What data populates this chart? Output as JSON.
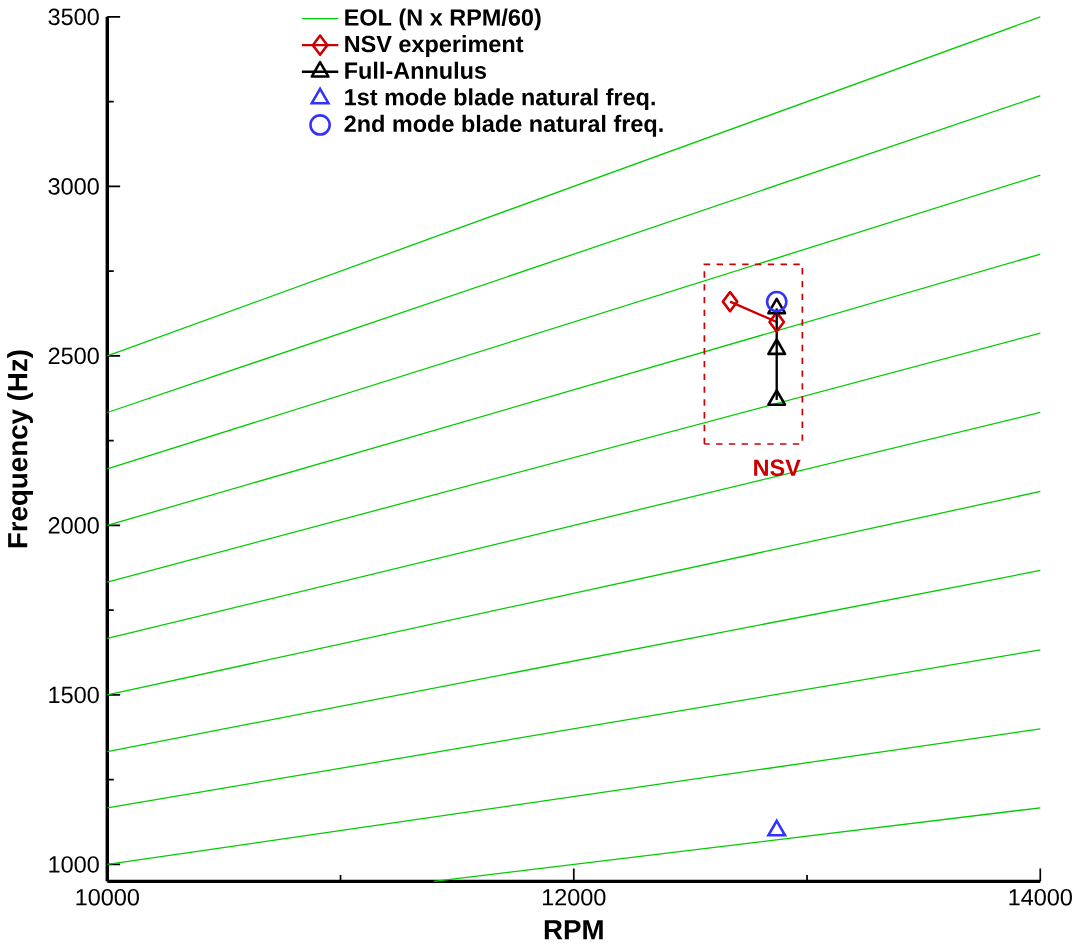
{
  "chart_data": {
    "type": "line",
    "xlabel": "RPM",
    "ylabel": "Frequency (Hz)",
    "xlim": [
      10000,
      14000
    ],
    "ylim": [
      950,
      3500
    ],
    "xticks": [
      10000,
      12000,
      14000
    ],
    "yticks": [
      1000,
      1500,
      2000,
      2500,
      3000,
      3500
    ],
    "legend": "top left",
    "grid": false,
    "annotations": [
      {
        "text": "NSV",
        "x": 12870,
        "y": 2170
      }
    ],
    "series": [
      {
        "name": "EOL (N x RPM/60)",
        "color": "#00cc00",
        "marker": "none",
        "x": [
          11400,
          14000
        ],
        "values": [
          950,
          1167
        ]
      },
      {
        "color": "#00cc00",
        "marker": "none",
        "x": [
          10000,
          14000
        ],
        "values": [
          1000,
          1400
        ]
      },
      {
        "color": "#00cc00",
        "marker": "none",
        "x": [
          10000,
          14000
        ],
        "values": [
          1167,
          1633
        ]
      },
      {
        "color": "#00cc00",
        "marker": "none",
        "x": [
          10000,
          14000
        ],
        "values": [
          1333,
          1867
        ]
      },
      {
        "color": "#00cc00",
        "marker": "none",
        "x": [
          10000,
          14000
        ],
        "values": [
          1500,
          2100
        ]
      },
      {
        "color": "#00cc00",
        "marker": "none",
        "x": [
          10000,
          14000
        ],
        "values": [
          1667,
          2333
        ]
      },
      {
        "color": "#00cc00",
        "marker": "none",
        "x": [
          10000,
          14000
        ],
        "values": [
          1833,
          2567
        ]
      },
      {
        "color": "#00cc00",
        "marker": "none",
        "x": [
          10000,
          14000
        ],
        "values": [
          2000,
          2800
        ]
      },
      {
        "color": "#00cc00",
        "marker": "none",
        "x": [
          10000,
          14000
        ],
        "values": [
          2167,
          3033
        ]
      },
      {
        "color": "#00cc00",
        "marker": "none",
        "x": [
          10000,
          14000
        ],
        "values": [
          2333,
          3267
        ]
      },
      {
        "color": "#00cc00",
        "marker": "none",
        "x": [
          10000,
          14000
        ],
        "values": [
          2500,
          3500
        ]
      },
      {
        "name": "NSV experiment",
        "color": "#cc0000",
        "marker": "diamond",
        "x": [
          12670,
          12870
        ],
        "values": [
          2660,
          2600
        ]
      },
      {
        "name": "Full-Annulus",
        "color": "#000000",
        "marker": "triangle",
        "x": [
          12870,
          12870,
          12870
        ],
        "values": [
          2370,
          2520,
          2640
        ]
      },
      {
        "name": "1st mode blade natural freq.",
        "type": "scatter",
        "color": "#3333ff",
        "marker": "triangle",
        "x": [
          12870
        ],
        "values": [
          1100
        ]
      },
      {
        "name": "2nd mode blade natural freq.",
        "type": "scatter",
        "color": "#3333ff",
        "marker": "circle",
        "x": [
          12870
        ],
        "values": [
          2660
        ]
      }
    ]
  }
}
